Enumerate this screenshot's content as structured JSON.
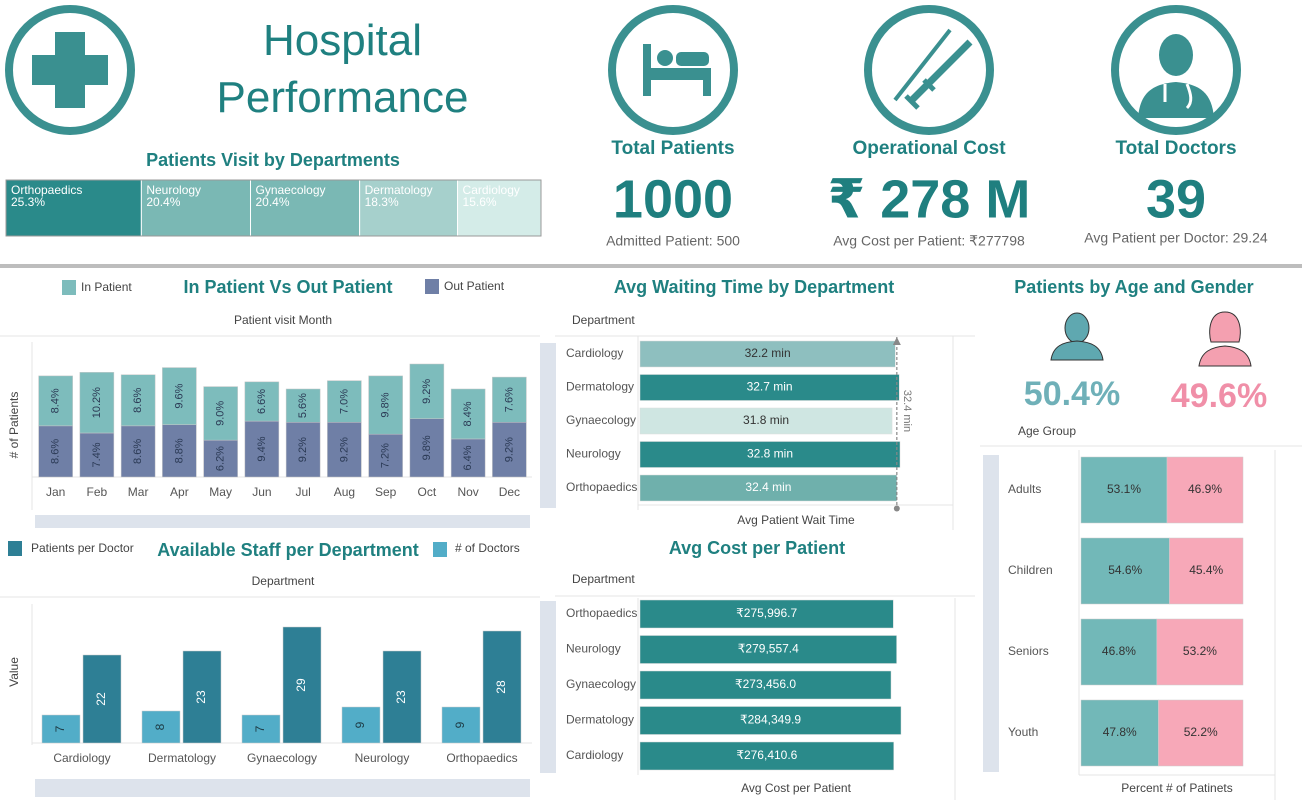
{
  "header": {
    "title": "Hospital Performance"
  },
  "kpis": [
    {
      "title": "Total Patients",
      "value": "1000",
      "subtitle": "Admitted Patient: 500"
    },
    {
      "title": "Operational Cost",
      "value": "₹ 278 M",
      "subtitle": "Avg Cost per Patient: ₹277798"
    },
    {
      "title": "Total Doctors",
      "value": "39",
      "subtitle": "Avg Patient per Doctor: 29.24"
    }
  ],
  "chart_data": [
    {
      "type": "treemap",
      "title": "Patients Visit by Departments",
      "categories": [
        "Orthopaedics",
        "Neurology",
        "Gynaecology",
        "Dermatology",
        "Cardiology"
      ],
      "values": [
        25.3,
        20.4,
        20.4,
        18.3,
        15.6
      ],
      "value_labels": [
        "25.3%",
        "20.4%",
        "20.4%",
        "18.3%",
        "15.6%"
      ],
      "colors": [
        "#2a8a8a",
        "#7ab8b4",
        "#7ab8b4",
        "#a6d0cc",
        "#d4ece8"
      ]
    },
    {
      "type": "stacked_bar",
      "title": "In Patient Vs Out Patient",
      "x_label": "Patient visit Month",
      "y_label": "# of Patients",
      "categories": [
        "Jan",
        "Feb",
        "Mar",
        "Apr",
        "May",
        "Jun",
        "Jul",
        "Aug",
        "Sep",
        "Oct",
        "Nov",
        "Dec"
      ],
      "series": [
        {
          "name": "In Patient",
          "color": "#7dbcbc",
          "values": [
            8.4,
            10.2,
            8.6,
            9.6,
            9.0,
            6.6,
            5.6,
            7.0,
            9.8,
            9.2,
            8.4,
            7.6
          ],
          "value_labels": [
            "8.4%",
            "10.2%",
            "8.6%",
            "9.6%",
            "9.0%",
            "6.6%",
            "5.6%",
            "7.0%",
            "9.8%",
            "9.2%",
            "8.4%",
            "7.6%"
          ]
        },
        {
          "name": "Out Patient",
          "color": "#6f7fa6",
          "values": [
            8.6,
            7.4,
            8.6,
            8.8,
            6.2,
            9.4,
            9.2,
            9.2,
            7.2,
            9.8,
            6.4,
            9.2
          ],
          "value_labels": [
            "8.6%",
            "7.4%",
            "8.6%",
            "8.8%",
            "6.2%",
            "9.4%",
            "9.2%",
            "9.2%",
            "7.2%",
            "9.8%",
            "6.4%",
            "9.2%"
          ]
        }
      ]
    },
    {
      "type": "hbar",
      "title": "Avg Waiting Time by Department",
      "y_label": "Department",
      "x_label": "Avg Patient Wait Time",
      "categories": [
        "Cardiology",
        "Dermatology",
        "Gynaecology",
        "Neurology",
        "Orthopaedics"
      ],
      "values": [
        32.2,
        32.7,
        31.8,
        32.8,
        32.4
      ],
      "value_labels": [
        "32.2 min",
        "32.7 min",
        "31.8 min",
        "32.8 min",
        "32.4 min"
      ],
      "colors": [
        "#8ebfbf",
        "#2a8a8a",
        "#cfe6e2",
        "#2a8a8a",
        "#6fb0ac"
      ],
      "reference_line": {
        "value": 32.4,
        "label": "32.4 min"
      }
    },
    {
      "type": "grouped_bar",
      "title": "Available Staff per Department",
      "x_label": "Department",
      "y_label": "Value",
      "categories": [
        "Cardiology",
        "Dermatology",
        "Gynaecology",
        "Neurology",
        "Orthopaedics"
      ],
      "series": [
        {
          "name": "Patients per Doctor",
          "color": "#2e7f95",
          "values": [
            22,
            23,
            29,
            23,
            28
          ]
        },
        {
          "name": "# of Doctors",
          "color": "#52adc8",
          "values": [
            7,
            8,
            7,
            9,
            9
          ]
        }
      ]
    },
    {
      "type": "hbar",
      "title": "Avg Cost per Patient",
      "y_label": "Department",
      "x_label": "Avg Cost per Patient",
      "categories": [
        "Orthopaedics",
        "Neurology",
        "Gynaecology",
        "Dermatology",
        "Cardiology"
      ],
      "values": [
        275996.7,
        279557.4,
        273456.0,
        284349.9,
        276410.6
      ],
      "value_labels": [
        "₹275,996.7",
        "₹279,557.4",
        "₹273,456.0",
        "₹284,349.9",
        "₹276,410.6"
      ],
      "color": "#2a8a8a"
    },
    {
      "type": "stacked_hbar_100",
      "title": "Patients by Age and Gender",
      "y_label": "Age Group",
      "x_label": "Percent # of Patinets",
      "categories": [
        "Adults",
        "Children",
        "Seniors",
        "Youth"
      ],
      "series": [
        {
          "color": "#72b8b8",
          "values": [
            53.1,
            54.6,
            46.8,
            47.8
          ],
          "value_labels": [
            "53.1%",
            "54.6%",
            "46.8%",
            "47.8%"
          ]
        },
        {
          "color": "#f7a8b8",
          "values": [
            46.9,
            45.4,
            53.2,
            52.2
          ],
          "value_labels": [
            "46.9%",
            "45.4%",
            "53.2%",
            "52.2%"
          ]
        }
      ],
      "gender_shares": [
        "50.4%",
        "49.6%"
      ]
    }
  ]
}
